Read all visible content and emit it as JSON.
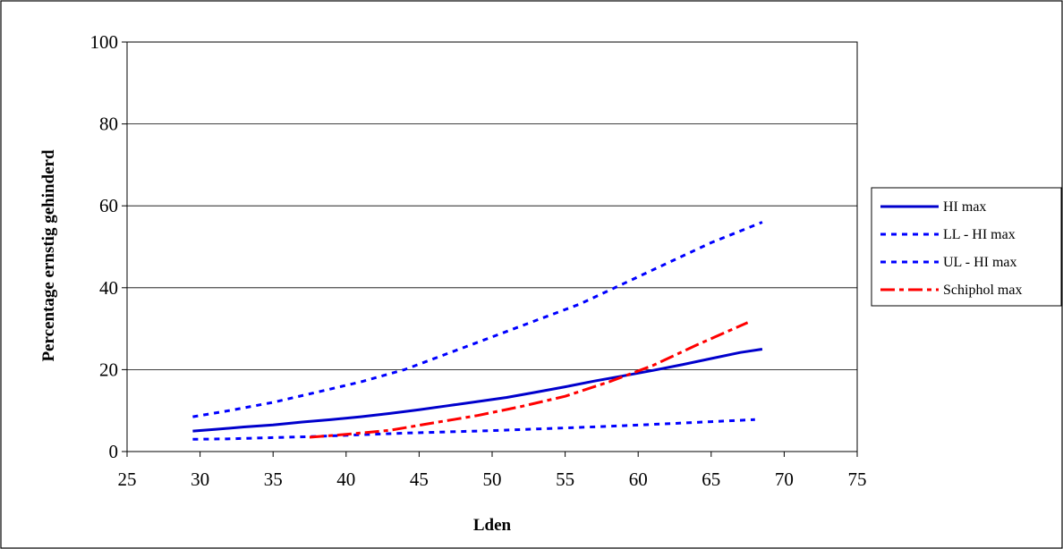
{
  "chart_data": {
    "type": "line",
    "xlabel": "Lden",
    "ylabel": "Percentage ernstig gehinderd",
    "xlim": [
      25,
      75
    ],
    "ylim": [
      0,
      100
    ],
    "xticks": [
      "25",
      "30",
      "35",
      "40",
      "45",
      "50",
      "55",
      "60",
      "65",
      "70",
      "75"
    ],
    "yticks": [
      "0",
      "20",
      "40",
      "60",
      "80",
      "100"
    ],
    "grid": "horizontal",
    "legend_position": "right",
    "series": [
      {
        "name": "HI max",
        "color": "#0000cc",
        "style": "solid",
        "x": [
          29.5,
          31,
          33,
          35,
          37,
          39,
          41,
          43,
          45,
          47,
          49,
          51,
          53,
          55,
          57,
          59,
          61,
          63,
          65,
          67,
          68.5
        ],
        "y": [
          5,
          5.4,
          6,
          6.5,
          7.2,
          7.8,
          8.5,
          9.3,
          10.2,
          11.2,
          12.2,
          13.2,
          14.5,
          15.8,
          17.2,
          18.5,
          19.8,
          21.2,
          22.7,
          24.2,
          25
        ]
      },
      {
        "name": "LL - HI max",
        "color": "#0000ff",
        "style": "dotted",
        "x": [
          29.5,
          32,
          35,
          38,
          41,
          44,
          47,
          50,
          53,
          56,
          59,
          62,
          65,
          68
        ],
        "y": [
          3,
          3.1,
          3.4,
          3.7,
          4.1,
          4.5,
          4.8,
          5.1,
          5.5,
          5.9,
          6.3,
          6.8,
          7.3,
          7.8
        ]
      },
      {
        "name": "UL - HI max",
        "color": "#0000ff",
        "style": "dotted",
        "x": [
          29.5,
          32,
          35,
          38,
          41,
          44,
          47,
          50,
          53,
          56,
          59,
          62,
          65,
          68.5
        ],
        "y": [
          8.5,
          10,
          12,
          14.5,
          17,
          20,
          24,
          28,
          32,
          36,
          41,
          46,
          51,
          56
        ]
      },
      {
        "name": "Schiphol max",
        "color": "#ff0000",
        "style": "dashdot",
        "x": [
          37.5,
          40,
          43,
          46,
          49,
          52,
          55,
          58,
          61,
          64,
          67.5
        ],
        "y": [
          3.5,
          4.2,
          5.2,
          7,
          8.8,
          11,
          13.5,
          17,
          21,
          26,
          31.5
        ]
      }
    ]
  }
}
